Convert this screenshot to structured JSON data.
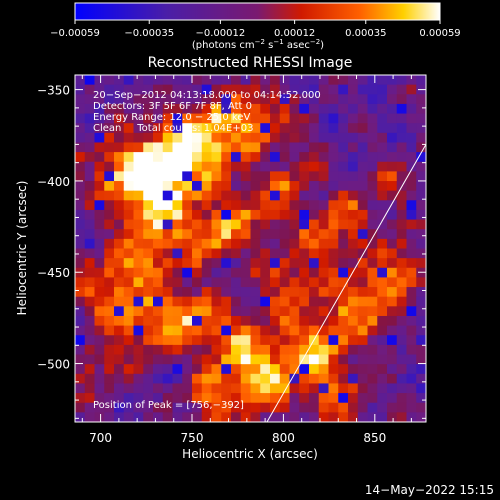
{
  "chart_data": {
    "type": "heatmap",
    "title": "Reconstructed RHESSI Image",
    "xlabel": "Heliocentric X (arcsec)",
    "ylabel": "Heliocentric Y (arcsec)",
    "xlim": [
      686,
      878
    ],
    "ylim": [
      -532,
      -342
    ],
    "x_ticks": [
      700,
      750,
      800,
      850
    ],
    "x_tick_labels": [
      "700",
      "750",
      "800",
      "850"
    ],
    "y_ticks": [
      -500,
      -450,
      -400,
      -350
    ],
    "y_tick_labels": [
      "−500",
      "−450",
      "−400",
      "−350"
    ],
    "colorbar": {
      "range": [
        -0.00059,
        0.00059
      ],
      "ticks": [
        -0.00059,
        -0.00035,
        -0.00012,
        0.00012,
        0.00035,
        0.00059
      ],
      "tick_labels": [
        "−0.00059",
        "−0.00035",
        "−0.00012",
        "0.00012",
        "0.00035",
        "0.00059"
      ],
      "unit_prefix": "(photons cm",
      "unit_sup1": "−2",
      "unit_mid1": " s",
      "unit_sup2": "−1",
      "unit_mid2": " asec",
      "unit_sup3": "−2",
      "unit_suffix": ")"
    },
    "info_lines": [
      "20−Sep−2012 04:13:18.000 to 04:14:52.000",
      "Detectors: 3F 5F 6F 7F 8F, Att 0",
      "Energy Range: 12.0 − 25.0 keV",
      "Clean     Total counts: 1.04E+03"
    ],
    "peak_label": "Position of Peak = [756,−392]",
    "peak_position": [
      756,
      -392
    ],
    "limb_line": [
      [
        791,
        -532
      ],
      [
        878,
        -380
      ]
    ],
    "grid": false
  },
  "footer": {
    "timestamp": "14−May−2022 15:15"
  },
  "colors": {
    "background": "#000000",
    "plot_background": "#5c1c8a",
    "text": "#ffffff",
    "colormap": [
      "#0000ff",
      "#5020a0",
      "#7c1a7a",
      "#cc1800",
      "#ff5a00",
      "#ffd000",
      "#ffffff"
    ]
  }
}
